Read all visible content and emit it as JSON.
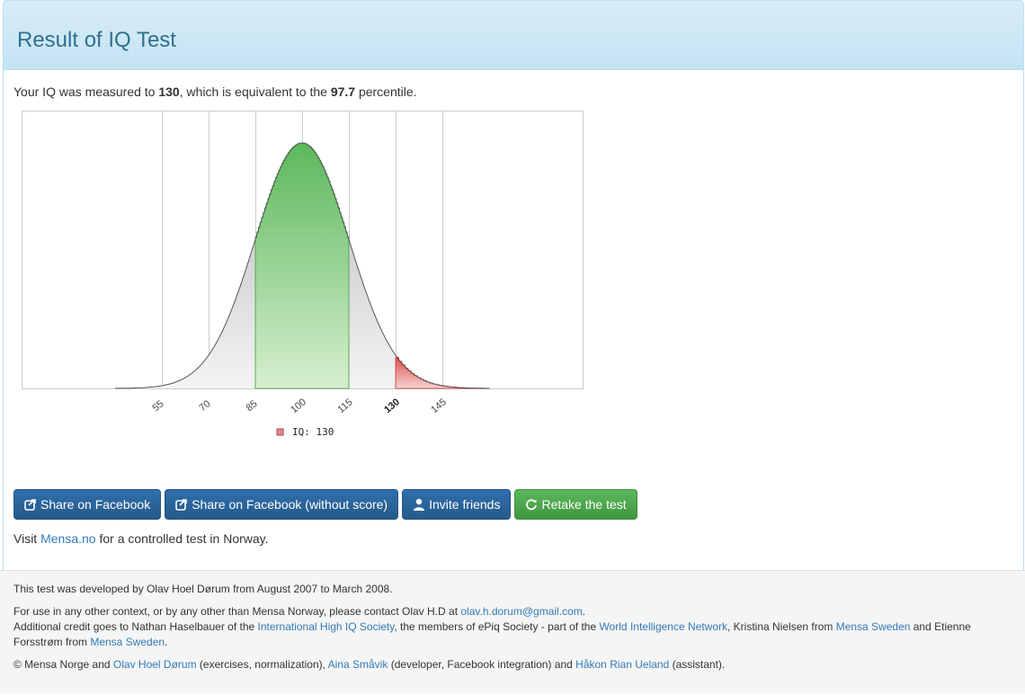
{
  "header": {
    "title": "Result of IQ Test"
  },
  "summary": {
    "prefix": "Your IQ was measured to ",
    "iq": "130",
    "middle": ", which is equivalent to the ",
    "percentile": "97.7",
    "suffix": " percentile."
  },
  "chart_data": {
    "type": "area",
    "distribution": {
      "mean": 100,
      "sd": 15
    },
    "x_range": [
      10,
      190
    ],
    "x_ticks": [
      55,
      70,
      85,
      100,
      115,
      130,
      145
    ],
    "tick_labels": [
      "55",
      "70",
      "85",
      "100",
      "115",
      "130",
      "145"
    ],
    "highlight_tick": "130",
    "grid": true,
    "bands": [
      {
        "name": "middle",
        "from": 85,
        "to": 115,
        "color": "#5cb85c"
      },
      {
        "name": "IQ: 130",
        "from": 130,
        "to": 160,
        "color": "#d9534f"
      }
    ],
    "legend": {
      "label": "IQ: 130",
      "placement": "bottom-center",
      "color": "#e08a8a"
    },
    "colors": {
      "curve": "#555555",
      "grey_fill": "#cccccc",
      "grid": "#cccccc"
    }
  },
  "buttons": {
    "share_fb": "Share on Facebook",
    "share_fb_noscore": "Share on Facebook (without score)",
    "invite": "Invite friends",
    "retake": "Retake the test"
  },
  "visit": {
    "prefix": "Visit ",
    "link": "Mensa.no",
    "suffix": " for a controlled test in Norway."
  },
  "footer": {
    "line1": "This test was developed by Olav Hoel Dørum from August 2007 to March 2008.",
    "contact_prefix": "For use in any other context, or by any other than Mensa Norway, please contact Olav H.D at ",
    "contact_email": "olav.h.dorum@gmail.com",
    "contact_suffix": ".",
    "credit_1": "Additional credit goes to Nathan Haselbauer of the ",
    "credit_link_1": "International High IQ Society",
    "credit_2": ", the members of ePiq Society - part of the ",
    "credit_link_2": "World Intelligence Network",
    "credit_3": ", Kristina Nielsen from ",
    "credit_link_3": "Mensa Sweden",
    "credit_4": " and Etienne Forsstrøm from ",
    "credit_link_4": "Mensa Sweden",
    "credit_5": ".",
    "copy_1": "© Mensa Norge and ",
    "copy_link_1": "Olav Hoel Dørum",
    "copy_2": " (exercises, normalization), ",
    "copy_link_2": "Aina Småvik",
    "copy_3": " (developer, Facebook integration) and ",
    "copy_link_3": "Håkon Rian Ueland",
    "copy_4": " (assistant)."
  }
}
